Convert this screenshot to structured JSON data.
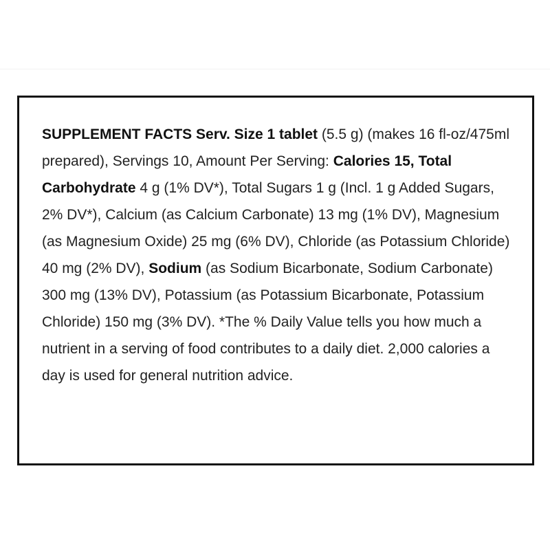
{
  "supplement_facts": {
    "segments": [
      {
        "text": "SUPPLEMENT FACTS Serv. Size 1 tablet",
        "bold": true
      },
      {
        "text": " (5.5 g) (makes 16 fl-oz/475ml prepared), Servings 10, Amount Per Serving: ",
        "bold": false
      },
      {
        "text": "Calories 15, Total Carbohydrate",
        "bold": true
      },
      {
        "text": " 4 g (1% DV*), Total Sugars 1 g (Incl. 1 g Added Sugars, 2% DV*), Calcium (as Calcium Carbonate) 13 mg (1% DV), Magnesium (as Magnesium Oxide) 25 mg (6% DV), Chloride (as Potassium Chloride) 40 mg (2% DV), ",
        "bold": false
      },
      {
        "text": "Sodium",
        "bold": true
      },
      {
        "text": " (as Sodium Bicarbonate, Sodium Carbonate) 300 mg (13% DV), Potassium (as Potassium Bicarbonate, Potassium Chloride) 150 mg (3% DV). *The % Daily Value tells you how much a nutrient in a serving of food contributes to a daily diet. 2,000 calories a day is used for general nutrition advice.",
        "bold": false
      }
    ]
  }
}
